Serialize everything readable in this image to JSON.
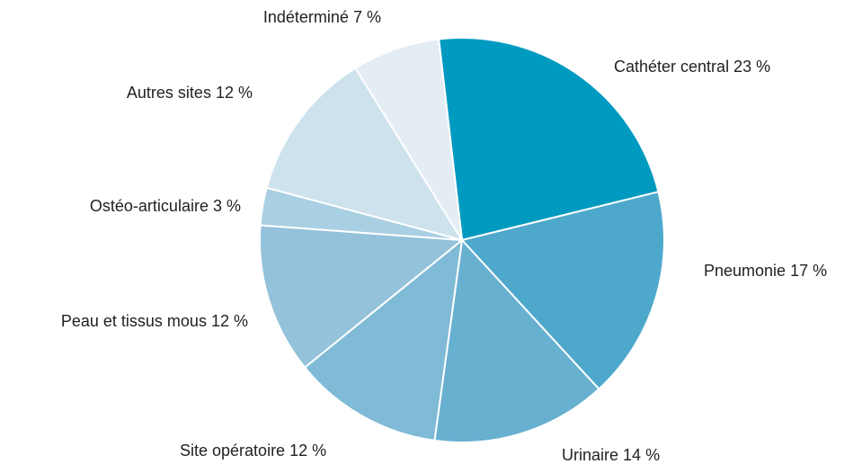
{
  "chart_data": {
    "type": "pie",
    "categories": [
      "Cathéter central",
      "Pneumonie",
      "Urinaire",
      "Site opératoire",
      "Peau et tissus mous",
      "Ostéo-articulaire",
      "Autres sites",
      "Indéterminé"
    ],
    "values": [
      23,
      17,
      14,
      12,
      12,
      3,
      12,
      7
    ],
    "value_labels": [
      "23 %",
      "17 %",
      "14 %",
      "12 %",
      "12 %",
      "3 %",
      "12 %",
      "7 %"
    ],
    "colors": [
      "#009ac0",
      "#4ea8cb",
      "#67b0d0",
      "#7fbad6",
      "#93c2da",
      "#a9cfe2",
      "#cde2ec",
      "#e4ecf4"
    ]
  }
}
